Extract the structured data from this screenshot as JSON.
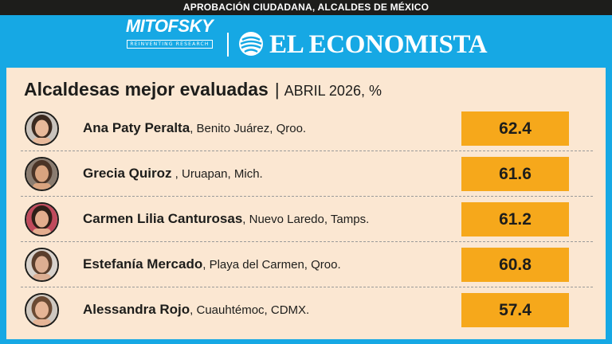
{
  "header": {
    "banner": "APROBACIÓN CIUDADANA, ALCALDES DE MÉXICO"
  },
  "brands": {
    "mitofsky": "MITOFSKY",
    "mitofsky_tagline": "REINVENTING RESEARCH",
    "separator": "|",
    "economista": "EL ECONOMISTA"
  },
  "colors": {
    "background": "#16a8e4",
    "panel": "#fbe7d2",
    "value_box": "#f6a81b",
    "banner": "#1d1d1b"
  },
  "chart_data": {
    "type": "bar",
    "title": "Alcaldesas mejor evaluadas",
    "subtitle": "ABRIL 2026, %",
    "title_separator": "|",
    "categories": [
      "Ana Paty Peralta",
      "Grecia Quiroz",
      "Carmen Lilia Canturosas",
      "Estefanía Mercado",
      "Alessandra Rojo"
    ],
    "locations": [
      ", Benito Juárez, Qroo.",
      " , Uruapan, Mich.",
      ", Nuevo Laredo, Tamps.",
      ", Playa del Carmen, Qroo.",
      ", Cuauhtémoc, CDMX."
    ],
    "values": [
      62.4,
      61.6,
      61.2,
      60.8,
      57.4
    ],
    "value_labels": [
      "62.4",
      "61.6",
      "61.2",
      "60.8",
      "57.4"
    ],
    "unit": "%"
  }
}
